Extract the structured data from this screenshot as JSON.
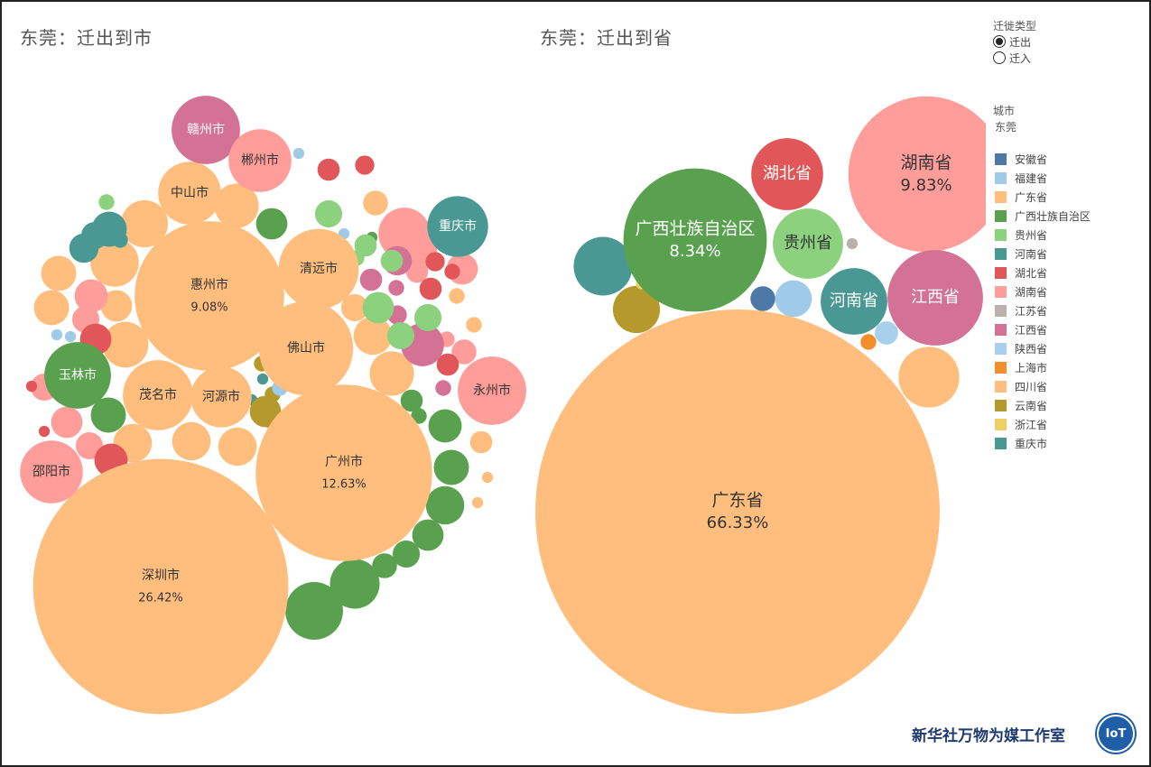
{
  "left_title": "东莞：迁出到市",
  "right_title": "东莞：迁出到省",
  "controls": {
    "title": "迁徙类型",
    "options": [
      {
        "label": "迁出",
        "selected": true
      },
      {
        "label": "迁入",
        "selected": false
      }
    ]
  },
  "legend": {
    "title": "城市",
    "subtitle": "东莞",
    "items": [
      {
        "label": "安徽省",
        "color": "#4e79a7"
      },
      {
        "label": "福建省",
        "color": "#a0cbe8"
      },
      {
        "label": "广东省",
        "color": "#ffbe7d"
      },
      {
        "label": "广西壮族自治区",
        "color": "#59a14f"
      },
      {
        "label": "贵州省",
        "color": "#8cd17d"
      },
      {
        "label": "河南省",
        "color": "#499894"
      },
      {
        "label": "湖北省",
        "color": "#e15759"
      },
      {
        "label": "湖南省",
        "color": "#ff9d9a"
      },
      {
        "label": "江苏省",
        "color": "#bab0ac"
      },
      {
        "label": "江西省",
        "color": "#d37295"
      },
      {
        "label": "陕西省",
        "color": "#a8d0ec"
      },
      {
        "label": "上海市",
        "color": "#f28e2b"
      },
      {
        "label": "四川省",
        "color": "#ffbe7d"
      },
      {
        "label": "云南省",
        "color": "#b6992d"
      },
      {
        "label": "浙江省",
        "color": "#f1ce63"
      },
      {
        "label": "重庆市",
        "color": "#499894"
      }
    ]
  },
  "chart_data": [
    {
      "type": "bubble",
      "title": "东莞：迁出到市",
      "unit": "%",
      "labeled": [
        {
          "name": "深圳市",
          "value": 26.42,
          "group": "广东省",
          "show_value": true
        },
        {
          "name": "广州市",
          "value": 12.63,
          "group": "广东省",
          "show_value": true
        },
        {
          "name": "惠州市",
          "value": 9.08,
          "group": "广东省",
          "show_value": true
        },
        {
          "name": "佛山市",
          "value": 3.6,
          "group": "广东省"
        },
        {
          "name": "清远市",
          "value": 2.6,
          "group": "广东省"
        },
        {
          "name": "茂名市",
          "value": 2.0,
          "group": "广东省"
        },
        {
          "name": "河源市",
          "value": 1.5,
          "group": "广东省"
        },
        {
          "name": "中山市",
          "value": 1.6,
          "group": "广东省"
        },
        {
          "name": "赣州市",
          "value": 1.9,
          "group": "江西省"
        },
        {
          "name": "郴州市",
          "value": 1.6,
          "group": "湖南省"
        },
        {
          "name": "永州市",
          "value": 1.9,
          "group": "湖南省"
        },
        {
          "name": "邵阳市",
          "value": 1.6,
          "group": "湖南省"
        },
        {
          "name": "玉林市",
          "value": 1.8,
          "group": "广西壮族自治区"
        },
        {
          "name": "重庆市",
          "value": 1.5,
          "group": "重庆市"
        }
      ],
      "unlabeled": [
        {
          "group": "广西壮族自治区",
          "value": 1.35
        },
        {
          "group": "广西壮族自治区",
          "value": 1.0
        },
        {
          "group": "广西壮族自治区",
          "value": 0.6
        },
        {
          "group": "广西壮族自治区",
          "value": 0.5
        },
        {
          "group": "广西壮族自治区",
          "value": 0.45
        },
        {
          "group": "广西壮族自治区",
          "value": 0.4
        },
        {
          "group": "广西壮族自治区",
          "value": 0.3
        },
        {
          "group": "广西壮族自治区",
          "value": 0.25
        },
        {
          "group": "广西壮族自治区",
          "value": 0.5
        },
        {
          "group": "广西壮族自治区",
          "value": 0.2
        },
        {
          "group": "广西壮族自治区",
          "value": 0.1
        },
        {
          "group": "广西壮族自治区",
          "value": 0.05
        },
        {
          "group": "广西壮族自治区",
          "value": 0.4
        },
        {
          "group": "广东省",
          "value": 0.9
        },
        {
          "group": "广东省",
          "value": 0.95
        },
        {
          "group": "广东省",
          "value": 0.85
        },
        {
          "group": "广东省",
          "value": 0.8
        },
        {
          "group": "广东省",
          "value": 0.8
        },
        {
          "group": "广东省",
          "value": 0.6
        },
        {
          "group": "广东省",
          "value": 0.6
        },
        {
          "group": "广东省",
          "value": 0.6
        },
        {
          "group": "广东省",
          "value": 0.6
        },
        {
          "group": "广东省",
          "value": 0.5
        },
        {
          "group": "广东省",
          "value": 0.5
        },
        {
          "group": "广东省",
          "value": 0.4
        },
        {
          "group": "广东省",
          "value": 0.3
        },
        {
          "group": "广东省",
          "value": 0.25
        },
        {
          "group": "广东省",
          "value": 0.2
        },
        {
          "group": "广东省",
          "value": 0.1
        },
        {
          "group": "广东省",
          "value": 0.1
        },
        {
          "group": "广东省",
          "value": 0.05
        },
        {
          "group": "广东省",
          "value": 0.05
        },
        {
          "group": "湖南省",
          "value": 1.1
        },
        {
          "group": "湖南省",
          "value": 0.45
        },
        {
          "group": "湖南省",
          "value": 0.4
        },
        {
          "group": "湖南省",
          "value": 0.4
        },
        {
          "group": "湖南省",
          "value": 0.4
        },
        {
          "group": "湖南省",
          "value": 0.3
        },
        {
          "group": "湖南省",
          "value": 0.3
        },
        {
          "group": "湖南省",
          "value": 0.3
        },
        {
          "group": "湖南省",
          "value": 0.25
        },
        {
          "group": "湖南省",
          "value": 0.2
        },
        {
          "group": "湖南省",
          "value": 0.1
        },
        {
          "group": "湖北省",
          "value": 0.45
        },
        {
          "group": "湖北省",
          "value": 0.4
        },
        {
          "group": "湖北省",
          "value": 0.2
        },
        {
          "group": "湖北省",
          "value": 0.2
        },
        {
          "group": "湖北省",
          "value": 0.2
        },
        {
          "group": "湖北省",
          "value": 0.15
        },
        {
          "group": "湖北省",
          "value": 0.15
        },
        {
          "group": "湖北省",
          "value": 0.1
        },
        {
          "group": "湖北省",
          "value": 0.05
        },
        {
          "group": "湖北省",
          "value": 0.05
        },
        {
          "group": "江西省",
          "value": 0.75
        },
        {
          "group": "江西省",
          "value": 0.35
        },
        {
          "group": "江西省",
          "value": 0.2
        },
        {
          "group": "江西省",
          "value": 0.15
        },
        {
          "group": "江西省",
          "value": 0.1
        },
        {
          "group": "江西省",
          "value": 0.1
        },
        {
          "group": "贵州省",
          "value": 0.4
        },
        {
          "group": "贵州省",
          "value": 0.3
        },
        {
          "group": "贵州省",
          "value": 0.3
        },
        {
          "group": "贵州省",
          "value": 0.3
        },
        {
          "group": "贵州省",
          "value": 0.2
        },
        {
          "group": "贵州省",
          "value": 0.2
        },
        {
          "group": "贵州省",
          "value": 0.1
        },
        {
          "group": "贵州省",
          "value": 0.1
        },
        {
          "group": "河南省",
          "value": 0.5
        },
        {
          "group": "河南省",
          "value": 0.35
        },
        {
          "group": "河南省",
          "value": 0.3
        },
        {
          "group": "河南省",
          "value": 0.1
        },
        {
          "group": "河南省",
          "value": 0.05
        },
        {
          "group": "河南省",
          "value": 0.05
        },
        {
          "group": "云南省",
          "value": 0.4
        },
        {
          "group": "云南省",
          "value": 0.1
        },
        {
          "group": "云南省",
          "value": 0.1
        },
        {
          "group": "云南省",
          "value": 0.05
        },
        {
          "group": "云南省",
          "value": 0.05
        },
        {
          "group": "福建省",
          "value": 0.1
        },
        {
          "group": "福建省",
          "value": 0.05
        },
        {
          "group": "福建省",
          "value": 0.05
        },
        {
          "group": "福建省",
          "value": 0.05
        },
        {
          "group": "福建省",
          "value": 0.05
        },
        {
          "group": "福建省",
          "value": 0.05
        },
        {
          "group": "福建省",
          "value": 0.05
        },
        {
          "group": "福建省",
          "value": 0.05
        },
        {
          "group": "安徽省",
          "value": 0.2
        },
        {
          "group": "安徽省",
          "value": 0.05
        },
        {
          "group": "上海市",
          "value": 0.1
        },
        {
          "group": "江苏省",
          "value": 0.05
        },
        {
          "group": "浙江省",
          "value": 0.05
        }
      ]
    },
    {
      "type": "bubble",
      "title": "东莞：迁出到省",
      "unit": "%",
      "labeled": [
        {
          "name": "广东省",
          "value": 66.33,
          "show_value": true
        },
        {
          "name": "湖南省",
          "value": 9.83,
          "show_value": true
        },
        {
          "name": "广西壮族自治区",
          "value": 8.34,
          "show_value": true
        },
        {
          "name": "江西省",
          "value": 3.7
        },
        {
          "name": "湖北省",
          "value": 2.1
        },
        {
          "name": "贵州省",
          "value": 2.0
        },
        {
          "name": "河南省",
          "value": 1.8
        }
      ],
      "unlabeled": [
        {
          "group": "重庆市",
          "value": 1.4
        },
        {
          "group": "四川省",
          "value": 1.5
        },
        {
          "group": "云南省",
          "value": 0.9
        },
        {
          "group": "福建省",
          "value": 0.55
        },
        {
          "group": "安徽省",
          "value": 0.25
        },
        {
          "group": "陕西省",
          "value": 0.22
        },
        {
          "group": "上海市",
          "value": 0.1
        },
        {
          "group": "江苏省",
          "value": 0.05
        },
        {
          "group": "浙江省",
          "value": 0.04
        }
      ]
    }
  ],
  "brand": {
    "text": "新华社万物为媒工作室",
    "logo_text": "IoT"
  }
}
